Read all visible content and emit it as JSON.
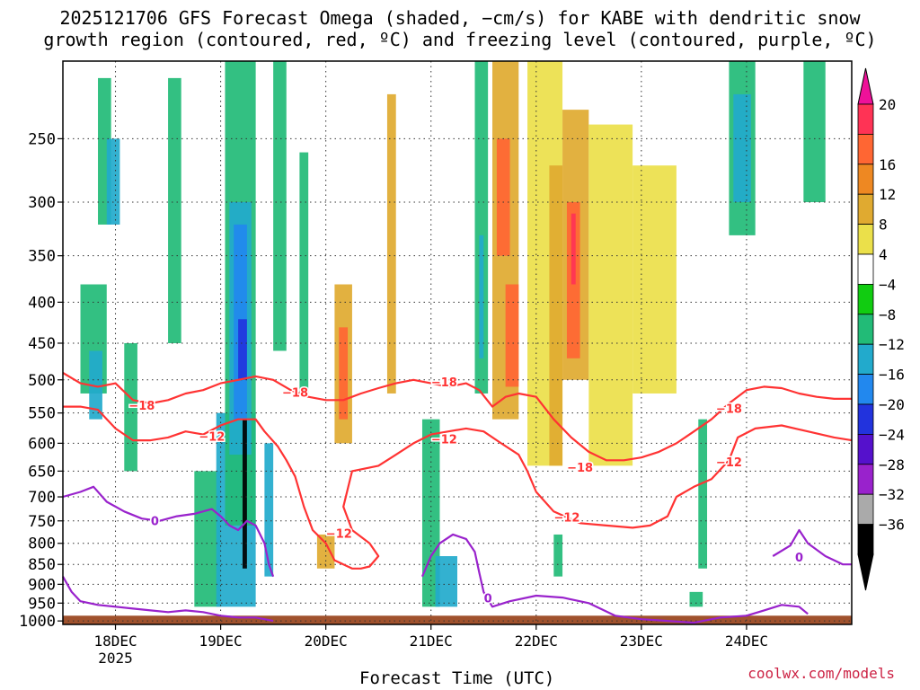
{
  "title_line1": "2025121706 GFS Forecast Omega (shaded, −cm/s) for KABE with dendritic snow",
  "title_line2": "growth region (contoured, red, ºC) and freezing level (contoured, purple, ºC)",
  "credit": "coolwx.com/models",
  "chart_data": {
    "type": "heatmap",
    "xlabel": "Forecast Time (UTC)",
    "ylabel": "",
    "x_ticks": [
      {
        "label": "18DEC",
        "sublabel": "2025",
        "hour": 18
      },
      {
        "label": "19DEC",
        "hour": 42
      },
      {
        "label": "20DEC",
        "hour": 66
      },
      {
        "label": "21DEC",
        "hour": 90
      },
      {
        "label": "22DEC",
        "hour": 114
      },
      {
        "label": "23DEC",
        "hour": 138
      },
      {
        "label": "24DEC",
        "hour": 162
      }
    ],
    "xlim": [
      6,
      186
    ],
    "y_ticks": [
      250,
      300,
      350,
      400,
      450,
      500,
      550,
      600,
      650,
      700,
      750,
      800,
      850,
      900,
      950,
      1000
    ],
    "ylim": [
      200,
      1010
    ],
    "y_scale": "log-pressure",
    "colorbar": {
      "labels": [
        "20",
        "16",
        "12",
        "8",
        "4",
        "−4",
        "−8",
        "−12",
        "−16",
        "−20",
        "−24",
        "−28",
        "−32",
        "−36"
      ],
      "colors": [
        "#ff3355",
        "#ff6633",
        "#ee8822",
        "#e0aa30",
        "#ebe04a",
        "#ffffff",
        "#11cc11",
        "#22bb77",
        "#22aacc",
        "#2288ee",
        "#2233dd",
        "#5511cc",
        "#9922cc",
        "#aaaaaa",
        "#000000"
      ],
      "top_color": "#ee1199",
      "bottom_color": "#000000"
    },
    "contour_labels": [
      {
        "text": "−18",
        "hour": 24,
        "p": 540,
        "color": "#ff3333"
      },
      {
        "text": "−12",
        "hour": 40,
        "p": 590,
        "color": "#ff3333"
      },
      {
        "text": "−18",
        "hour": 59,
        "p": 520,
        "color": "#ff3333"
      },
      {
        "text": "−12",
        "hour": 69,
        "p": 780,
        "color": "#ff3333"
      },
      {
        "text": "−18",
        "hour": 93,
        "p": 505,
        "color": "#ff3333"
      },
      {
        "text": "−12",
        "hour": 93,
        "p": 595,
        "color": "#ff3333"
      },
      {
        "text": "−18",
        "hour": 124,
        "p": 645,
        "color": "#ff3333"
      },
      {
        "text": "−12",
        "hour": 121,
        "p": 745,
        "color": "#ff3333"
      },
      {
        "text": "−18",
        "hour": 158,
        "p": 545,
        "color": "#ff3333"
      },
      {
        "text": "−12",
        "hour": 158,
        "p": 635,
        "color": "#ff3333"
      },
      {
        "text": "0",
        "hour": 27,
        "p": 752,
        "color": "#9922cc"
      },
      {
        "text": "0",
        "hour": 103,
        "p": 940,
        "color": "#9922cc"
      },
      {
        "text": "0",
        "hour": 174,
        "p": 835,
        "color": "#9922cc"
      }
    ],
    "series": [
      {
        "type": "contour",
        "color": "#ff3333",
        "points": [
          [
            6,
            490
          ],
          [
            10,
            505
          ],
          [
            14,
            510
          ],
          [
            18,
            505
          ],
          [
            22,
            530
          ],
          [
            26,
            535
          ],
          [
            30,
            530
          ],
          [
            34,
            520
          ],
          [
            38,
            515
          ],
          [
            42,
            505
          ],
          [
            46,
            500
          ],
          [
            50,
            495
          ],
          [
            54,
            500
          ],
          [
            58,
            515
          ],
          [
            62,
            525
          ],
          [
            66,
            530
          ],
          [
            70,
            530
          ],
          [
            74,
            520
          ],
          [
            78,
            512
          ],
          [
            82,
            505
          ],
          [
            86,
            500
          ],
          [
            90,
            505
          ],
          [
            94,
            510
          ],
          [
            98,
            505
          ],
          [
            101,
            515
          ],
          [
            104,
            540
          ],
          [
            107,
            525
          ],
          [
            110,
            520
          ],
          [
            114,
            525
          ],
          [
            118,
            560
          ],
          [
            122,
            590
          ],
          [
            126,
            615
          ],
          [
            130,
            630
          ],
          [
            134,
            630
          ],
          [
            138,
            625
          ],
          [
            142,
            615
          ],
          [
            146,
            600
          ],
          [
            150,
            580
          ],
          [
            154,
            560
          ],
          [
            158,
            535
          ],
          [
            162,
            515
          ],
          [
            166,
            510
          ],
          [
            170,
            512
          ],
          [
            174,
            520
          ],
          [
            178,
            525
          ],
          [
            182,
            528
          ],
          [
            186,
            528
          ]
        ]
      },
      {
        "type": "contour",
        "color": "#ff3333",
        "points": [
          [
            6,
            540
          ],
          [
            10,
            540
          ],
          [
            14,
            545
          ],
          [
            18,
            575
          ],
          [
            22,
            595
          ],
          [
            26,
            595
          ],
          [
            30,
            590
          ],
          [
            34,
            580
          ],
          [
            38,
            585
          ],
          [
            42,
            570
          ],
          [
            46,
            560
          ],
          [
            50,
            560
          ],
          [
            52,
            580
          ],
          [
            55,
            605
          ],
          [
            57,
            630
          ],
          [
            59,
            660
          ],
          [
            61,
            720
          ],
          [
            63,
            770
          ],
          [
            66,
            800
          ],
          [
            68,
            840
          ],
          [
            72,
            860
          ],
          [
            74,
            860
          ],
          [
            76,
            855
          ],
          [
            78,
            830
          ],
          [
            76,
            800
          ],
          [
            72,
            770
          ],
          [
            70,
            720
          ],
          [
            72,
            650
          ],
          [
            78,
            640
          ],
          [
            82,
            620
          ],
          [
            86,
            600
          ],
          [
            90,
            585
          ],
          [
            94,
            580
          ],
          [
            98,
            575
          ],
          [
            102,
            580
          ],
          [
            106,
            600
          ],
          [
            110,
            620
          ],
          [
            112,
            650
          ],
          [
            114,
            690
          ],
          [
            118,
            730
          ],
          [
            124,
            755
          ],
          [
            130,
            760
          ],
          [
            136,
            765
          ],
          [
            140,
            760
          ],
          [
            144,
            740
          ],
          [
            146,
            700
          ],
          [
            150,
            680
          ],
          [
            154,
            665
          ],
          [
            158,
            630
          ],
          [
            160,
            590
          ],
          [
            164,
            575
          ],
          [
            170,
            570
          ],
          [
            176,
            580
          ],
          [
            182,
            590
          ],
          [
            186,
            595
          ]
        ]
      },
      {
        "type": "contour",
        "color": "#9922cc",
        "points": [
          [
            6,
            700
          ],
          [
            10,
            690
          ],
          [
            13,
            680
          ],
          [
            16,
            710
          ],
          [
            20,
            730
          ],
          [
            24,
            745
          ],
          [
            28,
            750
          ],
          [
            32,
            740
          ],
          [
            36,
            735
          ],
          [
            40,
            725
          ],
          [
            42,
            740
          ],
          [
            44,
            760
          ],
          [
            46,
            770
          ],
          [
            48,
            750
          ],
          [
            50,
            760
          ],
          [
            52,
            800
          ],
          [
            53,
            850
          ],
          [
            54,
            880
          ]
        ]
      },
      {
        "type": "contour",
        "color": "#9922cc",
        "points": [
          [
            6,
            880
          ],
          [
            8,
            920
          ],
          [
            10,
            945
          ],
          [
            14,
            955
          ],
          [
            18,
            960
          ],
          [
            22,
            965
          ],
          [
            26,
            970
          ],
          [
            30,
            975
          ],
          [
            34,
            970
          ],
          [
            38,
            975
          ],
          [
            42,
            985
          ],
          [
            46,
            990
          ],
          [
            50,
            990
          ],
          [
            54,
            1000
          ]
        ]
      },
      {
        "type": "contour",
        "color": "#9922cc",
        "points": [
          [
            88,
            880
          ],
          [
            90,
            830
          ],
          [
            92,
            800
          ],
          [
            95,
            780
          ],
          [
            98,
            790
          ],
          [
            100,
            820
          ],
          [
            101,
            870
          ],
          [
            102,
            920
          ],
          [
            104,
            960
          ],
          [
            108,
            945
          ],
          [
            114,
            930
          ],
          [
            120,
            935
          ],
          [
            126,
            950
          ],
          [
            132,
            985
          ],
          [
            138,
            995
          ],
          [
            144,
            1000
          ],
          [
            150,
            1005
          ],
          [
            156,
            990
          ],
          [
            162,
            985
          ],
          [
            166,
            970
          ],
          [
            170,
            955
          ],
          [
            174,
            960
          ],
          [
            176,
            980
          ]
        ]
      },
      {
        "type": "contour",
        "color": "#9922cc",
        "points": [
          [
            168,
            830
          ],
          [
            172,
            805
          ],
          [
            174,
            770
          ],
          [
            176,
            800
          ],
          [
            180,
            830
          ],
          [
            184,
            850
          ],
          [
            186,
            850
          ]
        ]
      }
    ],
    "shading_cells": [
      {
        "h": [
          10,
          16
        ],
        "p": [
          380,
          520
        ],
        "v": 7
      },
      {
        "h": [
          12,
          15
        ],
        "p": [
          460,
          560
        ],
        "v": 8
      },
      {
        "h": [
          20,
          23
        ],
        "p": [
          450,
          650
        ],
        "v": 7
      },
      {
        "h": [
          14,
          17
        ],
        "p": [
          210,
          320
        ],
        "v": 7
      },
      {
        "h": [
          16,
          19
        ],
        "p": [
          250,
          320
        ],
        "v": 8
      },
      {
        "h": [
          30,
          33
        ],
        "p": [
          210,
          450
        ],
        "v": 7
      },
      {
        "h": [
          36,
          42
        ],
        "p": [
          650,
          960
        ],
        "v": 7
      },
      {
        "h": [
          41,
          50
        ],
        "p": [
          550,
          960
        ],
        "v": 8
      },
      {
        "h": [
          43,
          50
        ],
        "p": [
          200,
          760
        ],
        "v": 7
      },
      {
        "h": [
          44,
          49
        ],
        "p": [
          300,
          620
        ],
        "v": 8
      },
      {
        "h": [
          45,
          48
        ],
        "p": [
          320,
          560
        ],
        "v": 9
      },
      {
        "h": [
          46,
          48
        ],
        "p": [
          420,
          500
        ],
        "v": 10
      },
      {
        "h": [
          47,
          48
        ],
        "p": [
          560,
          860
        ],
        "v": 14
      },
      {
        "h": [
          52,
          54
        ],
        "p": [
          600,
          880
        ],
        "v": 8
      },
      {
        "h": [
          54,
          57
        ],
        "p": [
          200,
          460
        ],
        "v": 7
      },
      {
        "h": [
          60,
          62
        ],
        "p": [
          260,
          520
        ],
        "v": 7
      },
      {
        "h": [
          68,
          72
        ],
        "p": [
          380,
          600
        ],
        "v": 3
      },
      {
        "h": [
          69,
          71
        ],
        "p": [
          430,
          560
        ],
        "v": 1
      },
      {
        "h": [
          64,
          68
        ],
        "p": [
          780,
          860
        ],
        "v": 3
      },
      {
        "h": [
          80,
          82
        ],
        "p": [
          220,
          520
        ],
        "v": 3
      },
      {
        "h": [
          88,
          92
        ],
        "p": [
          560,
          960
        ],
        "v": 7
      },
      {
        "h": [
          91,
          96
        ],
        "p": [
          830,
          960
        ],
        "v": 8
      },
      {
        "h": [
          100,
          103
        ],
        "p": [
          200,
          520
        ],
        "v": 7
      },
      {
        "h": [
          101,
          102
        ],
        "p": [
          330,
          470
        ],
        "v": 8
      },
      {
        "h": [
          104,
          110
        ],
        "p": [
          200,
          560
        ],
        "v": 3
      },
      {
        "h": [
          105,
          108
        ],
        "p": [
          250,
          350
        ],
        "v": 1
      },
      {
        "h": [
          107,
          110
        ],
        "p": [
          380,
          510
        ],
        "v": 1
      },
      {
        "h": [
          112,
          120
        ],
        "p": [
          200,
          640
        ],
        "v": 4
      },
      {
        "h": [
          117,
          120
        ],
        "p": [
          270,
          640
        ],
        "v": 3
      },
      {
        "h": [
          120,
          126
        ],
        "p": [
          230,
          500
        ],
        "v": 3
      },
      {
        "h": [
          121,
          124
        ],
        "p": [
          300,
          470
        ],
        "v": 1
      },
      {
        "h": [
          122,
          123
        ],
        "p": [
          310,
          380
        ],
        "v": 0
      },
      {
        "h": [
          118,
          120
        ],
        "p": [
          780,
          880
        ],
        "v": 7
      },
      {
        "h": [
          126,
          136
        ],
        "p": [
          240,
          640
        ],
        "v": 4
      },
      {
        "h": [
          136,
          146
        ],
        "p": [
          270,
          520
        ],
        "v": 4
      },
      {
        "h": [
          158,
          164
        ],
        "p": [
          200,
          330
        ],
        "v": 7
      },
      {
        "h": [
          159,
          163
        ],
        "p": [
          220,
          300
        ],
        "v": 8
      },
      {
        "h": [
          175,
          180
        ],
        "p": [
          200,
          300
        ],
        "v": 7
      },
      {
        "h": [
          151,
          153
        ],
        "p": [
          560,
          860
        ],
        "v": 7
      },
      {
        "h": [
          149,
          152
        ],
        "p": [
          920,
          960
        ],
        "v": 7
      }
    ],
    "surface_color": "#a0522d",
    "surface_top_p": 985
  }
}
